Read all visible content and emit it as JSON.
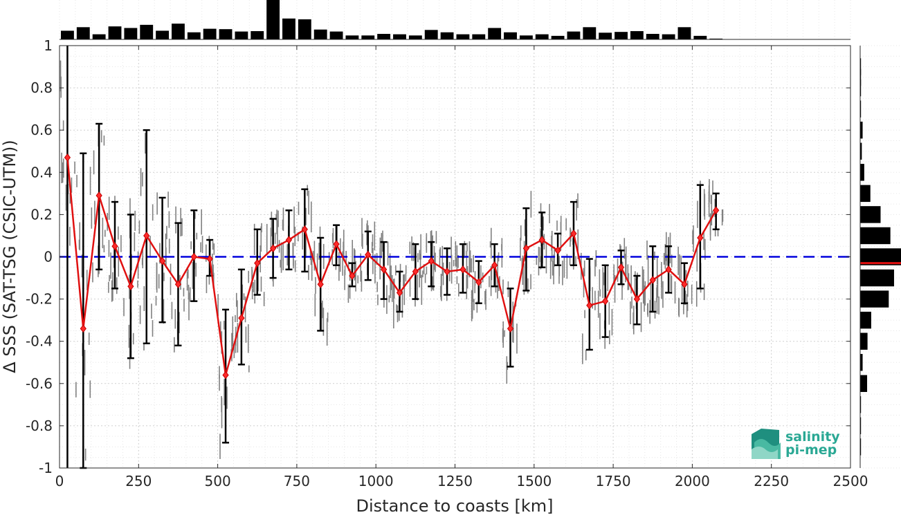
{
  "chart_data": {
    "type": "line",
    "title": "",
    "xlabel": "Distance to coasts [km]",
    "ylabel": "Δ SSS (SAT-TSG (CSIC-UTM))",
    "xlim": [
      0,
      2500
    ],
    "ylim": [
      -1,
      1
    ],
    "xticks": [
      0,
      250,
      500,
      750,
      1000,
      1250,
      1500,
      1750,
      2000,
      2250,
      2500
    ],
    "xtick_labels": [
      "0",
      "250",
      "500",
      "750",
      "1000",
      "1250",
      "1500",
      "1750",
      "2000",
      "2250",
      "2500"
    ],
    "yticks": [
      1,
      0.8,
      0.6,
      0.4,
      0.2,
      0,
      -0.2,
      -0.4,
      -0.6,
      -0.8,
      -1
    ],
    "ytick_labels": [
      "1",
      "0.8",
      "0.6",
      "0.4",
      "0.2",
      "0",
      "-0.2",
      "-0.4",
      "-0.6",
      "-0.8",
      "-1"
    ],
    "grid": true,
    "reference_line": {
      "y": 0,
      "color": "#0000dd",
      "style": "dashed"
    },
    "vertical_line": {
      "x": 25,
      "color": "#000000"
    },
    "colors": {
      "mean_line": "#e01010",
      "error_bars": "#000000",
      "scatter": "#808080",
      "histogram": "#000000",
      "zero_line": "#0000dd",
      "median_marker": "#e01010"
    },
    "series": [
      {
        "x": [
          25,
          75,
          125,
          175,
          225,
          275,
          325,
          375,
          425,
          475,
          525,
          575,
          625,
          675,
          725,
          775,
          825,
          875,
          925,
          975,
          1025,
          1075,
          1125,
          1175,
          1225,
          1275,
          1325,
          1375,
          1425,
          1475,
          1525,
          1575,
          1625,
          1675,
          1725,
          1775,
          1825,
          1875,
          1925,
          1975,
          2025,
          2075
        ],
        "values": [
          0.47,
          -0.34,
          0.29,
          0.05,
          -0.14,
          0.1,
          -0.02,
          -0.13,
          0.0,
          -0.01,
          -0.56,
          -0.29,
          -0.03,
          0.04,
          0.08,
          0.13,
          -0.13,
          0.06,
          -0.09,
          0.01,
          -0.06,
          -0.17,
          -0.07,
          -0.02,
          -0.07,
          -0.06,
          -0.12,
          -0.04,
          -0.34,
          0.04,
          0.08,
          0.03,
          0.11,
          -0.23,
          -0.21,
          -0.05,
          -0.2,
          -0.11,
          -0.06,
          -0.13,
          0.09,
          0.22
        ],
        "error_low": [
          null,
          -1.0,
          -0.06,
          -0.15,
          -0.48,
          -0.41,
          -0.31,
          -0.42,
          -0.21,
          -0.09,
          -0.88,
          -0.51,
          -0.18,
          -0.1,
          -0.06,
          -0.07,
          -0.35,
          -0.04,
          -0.14,
          -0.11,
          -0.2,
          -0.26,
          -0.2,
          -0.14,
          -0.18,
          -0.17,
          -0.22,
          -0.14,
          -0.52,
          -0.16,
          -0.05,
          -0.04,
          -0.04,
          -0.44,
          -0.38,
          -0.13,
          -0.32,
          -0.26,
          -0.17,
          -0.22,
          -0.15,
          0.13
        ],
        "error_high": [
          null,
          0.49,
          0.63,
          0.26,
          0.2,
          0.6,
          0.28,
          0.16,
          0.22,
          0.08,
          -0.25,
          -0.06,
          0.13,
          0.18,
          0.22,
          0.32,
          0.09,
          0.15,
          -0.03,
          0.12,
          0.07,
          -0.07,
          0.06,
          0.07,
          0.04,
          0.06,
          -0.02,
          0.06,
          -0.15,
          0.23,
          0.21,
          0.11,
          0.26,
          -0.01,
          -0.04,
          0.03,
          -0.09,
          0.05,
          0.05,
          -0.03,
          0.34,
          0.3
        ]
      }
    ],
    "top_histogram": {
      "bin_width": 50,
      "bin_starts": [
        0,
        50,
        100,
        150,
        200,
        250,
        300,
        350,
        400,
        450,
        500,
        550,
        600,
        650,
        700,
        750,
        800,
        850,
        900,
        950,
        1000,
        1050,
        1100,
        1150,
        1200,
        1250,
        1300,
        1350,
        1400,
        1450,
        1500,
        1550,
        1600,
        1650,
        1700,
        1750,
        1800,
        1850,
        1900,
        1950,
        2000,
        2050
      ],
      "values": [
        0.22,
        0.31,
        0.13,
        0.33,
        0.29,
        0.37,
        0.22,
        0.4,
        0.18,
        0.27,
        0.26,
        0.2,
        0.21,
        1.0,
        0.53,
        0.51,
        0.25,
        0.2,
        0.1,
        0.1,
        0.14,
        0.13,
        0.1,
        0.24,
        0.18,
        0.13,
        0.13,
        0.29,
        0.18,
        0.1,
        0.13,
        0.09,
        0.2,
        0.31,
        0.17,
        0.19,
        0.21,
        0.14,
        0.13,
        0.31,
        0.09,
        0.02
      ]
    },
    "right_histogram": {
      "bin_centers": [
        0.9,
        0.85,
        0.8,
        0.7,
        0.6,
        0.5,
        0.4,
        0.3,
        0.2,
        0.1,
        0.0,
        -0.1,
        -0.2,
        -0.3,
        -0.4,
        -0.5,
        -0.6,
        -0.7,
        -0.8,
        -0.9
      ],
      "values": [
        0.02,
        0.02,
        0.02,
        0.02,
        0.06,
        0.04,
        0.1,
        0.25,
        0.5,
        0.74,
        1.0,
        0.83,
        0.7,
        0.27,
        0.18,
        0.06,
        0.17,
        0.02,
        0.02,
        0.02
      ],
      "median": -0.03
    },
    "scatter_note_x_range": [
      0,
      2100
    ]
  },
  "logo": {
    "line1": "salinity",
    "line2": "pi-mep"
  }
}
